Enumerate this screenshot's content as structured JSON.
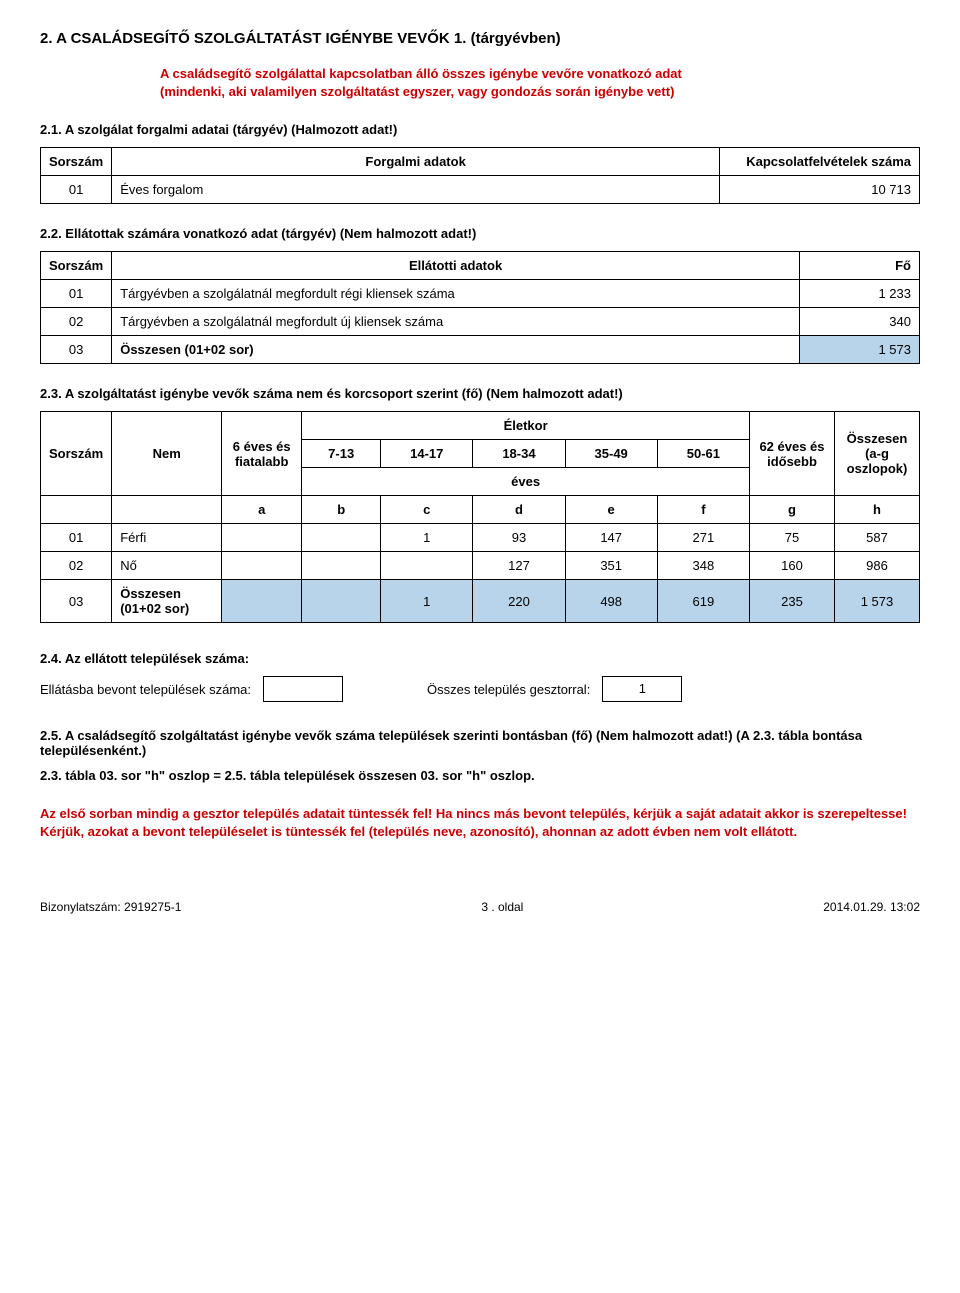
{
  "title_main": "2. A CSALÁDSEGÍTŐ SZOLGÁLTATÁST IGÉNYBE VEVŐK 1. (tárgyévben)",
  "intro_red_1": "A családsegítő szolgálattal kapcsolatban álló összes igénybe vevőre vonatkozó adat",
  "intro_red_2": "(mindenki, aki valamilyen szolgáltatást egyszer, vagy gondozás során igénybe vett)",
  "s21": {
    "heading": "2.1. A szolgálat forgalmi adatai (tárgyév)  (Halmozott adat!)",
    "cols": [
      "Sorszám",
      "Forgalmi adatok",
      "Kapcsolatfelvételek száma"
    ],
    "rows": [
      {
        "n": "01",
        "label": "Éves forgalom",
        "val": "10 713"
      }
    ]
  },
  "s22": {
    "heading": "2.2. Ellátottak számára vonatkozó adat (tárgyév)  (Nem halmozott adat!)",
    "cols": [
      "Sorszám",
      "Ellátotti adatok",
      "Fő"
    ],
    "rows": [
      {
        "n": "01",
        "label": "Tárgyévben a szolgálatnál megfordult régi kliensek száma",
        "val": "1 233",
        "hl": false,
        "bold": false
      },
      {
        "n": "02",
        "label": "Tárgyévben a szolgálatnál megfordult új kliensek száma",
        "val": "340",
        "hl": false,
        "bold": false
      },
      {
        "n": "03",
        "label": "Összesen (01+02 sor)",
        "val": "1 573",
        "hl": true,
        "bold": true
      }
    ]
  },
  "s23": {
    "heading": "2.3. A szolgáltatást igénybe vevők száma nem és korcsoport szerint (fő)  (Nem halmozott adat!)",
    "head_age": "Életkor",
    "col_sor": "Sorszám",
    "col_nem": "Nem",
    "col_6": "6 éves és fiatalabb",
    "col_713": "7-13",
    "col_1417": "14-17",
    "col_1834": "18-34",
    "col_3549": "35-49",
    "col_5061": "50-61",
    "col_62": "62 éves és idősebb",
    "col_ossz": "Összesen (a-g oszlopok)",
    "col_eves": "éves",
    "letters": [
      "a",
      "b",
      "c",
      "d",
      "e",
      "f",
      "g",
      "h"
    ],
    "rows": [
      {
        "n": "01",
        "label": "Férfi",
        "a": "",
        "b": "",
        "c": "1",
        "d": "93",
        "e": "147",
        "f": "271",
        "g": "75",
        "h": "587",
        "hl": false,
        "bold": false
      },
      {
        "n": "02",
        "label": "Nő",
        "a": "",
        "b": "",
        "c": "",
        "d": "127",
        "e": "351",
        "f": "348",
        "g": "160",
        "h": "986",
        "hl": false,
        "bold": false
      },
      {
        "n": "03",
        "label": "Összesen (01+02 sor)",
        "a": "",
        "b": "",
        "c": "1",
        "d": "220",
        "e": "498",
        "f": "619",
        "g": "235",
        "h": "1 573",
        "hl": true,
        "bold": true
      }
    ]
  },
  "s24": {
    "heading": "2.4. Az ellátott települések száma:",
    "label1": "Ellátásba bevont települések száma:",
    "val1": "",
    "label2": "Összes település gesztorral:",
    "val2": "1"
  },
  "s25_heading": "2.5. A családsegítő szolgáltatást igénybe vevők száma települések szerinti bontásban (fő) (Nem halmozott adat!) (A 2.3. tábla bontása településenként.)",
  "s25_sub": "2.3. tábla 03. sor \"h\" oszlop = 2.5. tábla települések összesen 03. sor \"h\" oszlop.",
  "red_note_1": "Az első sorban mindig a gesztor település adatait tüntessék fel! Ha nincs más bevont település, kérjük a saját adatait akkor is szerepeltesse!",
  "red_note_2": "Kérjük, azokat a bevont településelet is tüntessék fel (település neve, azonosító), ahonnan az adott évben nem volt ellátott.",
  "footer": {
    "left": "Bizonylatszám:  2919275-1",
    "center": "3 . oldal",
    "right": "2014.01.29.  13:02"
  }
}
